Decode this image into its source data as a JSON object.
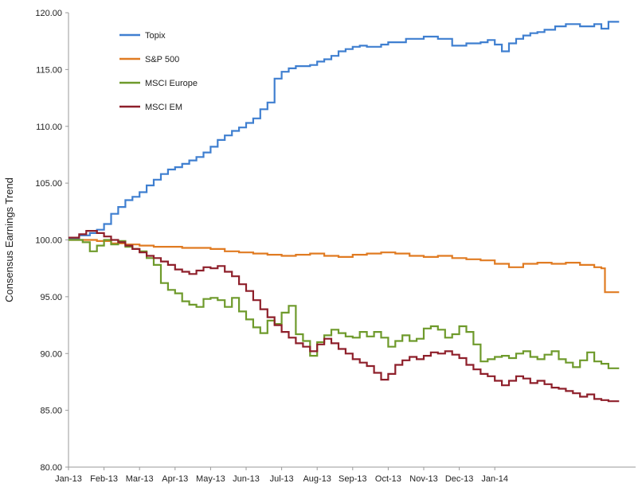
{
  "chart_data": {
    "type": "line",
    "title": "",
    "xlabel": "",
    "ylabel": "Consensus Earnings Trend",
    "ylim": [
      80,
      120
    ],
    "yticks": [
      "80.00",
      "85.00",
      "90.00",
      "95.00",
      "100.00",
      "105.00",
      "110.00",
      "115.00",
      "120.00"
    ],
    "xticks": [
      "Jan-13",
      "Feb-13",
      "Mar-13",
      "Apr-13",
      "May-13",
      "Jun-13",
      "Jul-13",
      "Aug-13",
      "Sep-13",
      "Oct-13",
      "Nov-13",
      "Dec-13",
      "Jan-14"
    ],
    "xlim": [
      0,
      15.5
    ],
    "grid": false,
    "legend": "top-left",
    "step": true,
    "series": [
      {
        "name": "Topix",
        "color": "#3f7fd0",
        "x": [
          0,
          0.3,
          0.6,
          0.8,
          1.0,
          1.2,
          1.4,
          1.6,
          1.8,
          2.0,
          2.2,
          2.4,
          2.6,
          2.8,
          3.0,
          3.2,
          3.4,
          3.6,
          3.8,
          4.0,
          4.2,
          4.4,
          4.6,
          4.8,
          5.0,
          5.2,
          5.4,
          5.6,
          5.8,
          6.0,
          6.2,
          6.4,
          6.8,
          7.0,
          7.2,
          7.4,
          7.6,
          7.8,
          8.0,
          8.2,
          8.4,
          8.6,
          8.8,
          9.0,
          9.5,
          10.0,
          10.4,
          10.8,
          11.2,
          11.6,
          11.8,
          12.0,
          12.2,
          12.4,
          12.6,
          12.8,
          13.0,
          13.2,
          13.4,
          13.7,
          14.0,
          14.4,
          14.8,
          15.0,
          15.2,
          15.5
        ],
        "y": [
          100.1,
          100.4,
          100.6,
          100.9,
          101.4,
          102.3,
          102.9,
          103.5,
          103.8,
          104.2,
          104.8,
          105.3,
          105.8,
          106.2,
          106.4,
          106.7,
          107.0,
          107.3,
          107.7,
          108.2,
          108.8,
          109.2,
          109.6,
          109.9,
          110.3,
          110.7,
          111.5,
          112.1,
          114.2,
          114.8,
          115.1,
          115.3,
          115.4,
          115.7,
          115.9,
          116.2,
          116.6,
          116.8,
          117.0,
          117.1,
          117.0,
          117.0,
          117.2,
          117.4,
          117.7,
          117.9,
          117.7,
          117.1,
          117.3,
          117.4,
          117.6,
          117.2,
          116.6,
          117.3,
          117.7,
          118.0,
          118.2,
          118.3,
          118.5,
          118.8,
          119.0,
          118.8,
          119.0,
          118.6,
          119.2,
          119.2
        ]
      },
      {
        "name": "S&P 500",
        "color": "#e07b22",
        "x": [
          0,
          0.4,
          0.8,
          1.2,
          1.6,
          2.0,
          2.4,
          2.8,
          3.2,
          3.6,
          4.0,
          4.4,
          4.8,
          5.2,
          5.6,
          6.0,
          6.4,
          6.8,
          7.2,
          7.6,
          8.0,
          8.4,
          8.8,
          9.2,
          9.6,
          10.0,
          10.4,
          10.8,
          11.2,
          11.6,
          12.0,
          12.4,
          12.8,
          13.2,
          13.6,
          14.0,
          14.4,
          14.8,
          15.0,
          15.1,
          15.5
        ],
        "y": [
          100.0,
          100.0,
          99.9,
          99.7,
          99.6,
          99.5,
          99.4,
          99.4,
          99.3,
          99.3,
          99.2,
          99.0,
          98.9,
          98.8,
          98.7,
          98.6,
          98.7,
          98.8,
          98.6,
          98.5,
          98.7,
          98.8,
          98.9,
          98.8,
          98.6,
          98.5,
          98.6,
          98.4,
          98.3,
          98.2,
          97.9,
          97.6,
          97.9,
          98.0,
          97.9,
          98.0,
          97.8,
          97.6,
          97.5,
          95.4,
          95.4
        ]
      },
      {
        "name": "MSCI Europe",
        "color": "#6e9a2b",
        "x": [
          0,
          0.4,
          0.6,
          0.8,
          1.0,
          1.2,
          1.4,
          1.6,
          1.8,
          2.0,
          2.2,
          2.4,
          2.6,
          2.8,
          3.0,
          3.2,
          3.4,
          3.6,
          3.8,
          4.0,
          4.2,
          4.4,
          4.6,
          4.8,
          5.0,
          5.2,
          5.4,
          5.6,
          5.8,
          6.0,
          6.2,
          6.4,
          6.6,
          6.8,
          7.0,
          7.2,
          7.4,
          7.6,
          7.8,
          8.0,
          8.2,
          8.4,
          8.6,
          8.8,
          9.0,
          9.2,
          9.4,
          9.6,
          9.8,
          10.0,
          10.2,
          10.4,
          10.6,
          10.8,
          11.0,
          11.2,
          11.4,
          11.6,
          11.8,
          12.0,
          12.2,
          12.4,
          12.6,
          12.8,
          13.0,
          13.2,
          13.4,
          13.6,
          13.8,
          14.0,
          14.2,
          14.4,
          14.6,
          14.8,
          15.0,
          15.2,
          15.5
        ],
        "y": [
          100.0,
          99.8,
          99.0,
          99.5,
          100.0,
          99.6,
          99.9,
          99.4,
          99.2,
          99.0,
          98.4,
          97.8,
          96.2,
          95.6,
          95.3,
          94.6,
          94.3,
          94.1,
          94.8,
          94.9,
          94.7,
          94.1,
          94.9,
          93.7,
          93.0,
          92.3,
          91.8,
          92.9,
          92.6,
          93.6,
          94.2,
          91.7,
          91.1,
          89.8,
          91.0,
          91.6,
          92.1,
          91.8,
          91.5,
          91.4,
          91.9,
          91.5,
          91.9,
          91.4,
          90.6,
          91.1,
          91.6,
          91.1,
          91.3,
          92.2,
          92.4,
          92.1,
          91.4,
          91.7,
          92.4,
          91.9,
          90.8,
          89.3,
          89.5,
          89.7,
          89.8,
          89.6,
          90.0,
          90.2,
          89.7,
          89.5,
          89.9,
          90.2,
          89.5,
          89.2,
          88.8,
          89.4,
          90.1,
          89.3,
          89.1,
          88.7,
          88.7
        ]
      },
      {
        "name": "MSCI EM",
        "color": "#8e1f2a",
        "x": [
          0,
          0.3,
          0.5,
          0.8,
          1.0,
          1.2,
          1.4,
          1.6,
          1.8,
          2.0,
          2.2,
          2.4,
          2.6,
          2.8,
          3.0,
          3.2,
          3.4,
          3.6,
          3.8,
          4.0,
          4.2,
          4.4,
          4.6,
          4.8,
          5.0,
          5.2,
          5.4,
          5.6,
          5.8,
          6.0,
          6.2,
          6.4,
          6.6,
          6.8,
          7.0,
          7.2,
          7.4,
          7.6,
          7.8,
          8.0,
          8.2,
          8.4,
          8.6,
          8.8,
          9.0,
          9.2,
          9.4,
          9.6,
          9.8,
          10.0,
          10.2,
          10.4,
          10.6,
          10.8,
          11.0,
          11.2,
          11.4,
          11.6,
          11.8,
          12.0,
          12.2,
          12.4,
          12.6,
          12.8,
          13.0,
          13.2,
          13.4,
          13.6,
          13.8,
          14.0,
          14.2,
          14.4,
          14.6,
          14.8,
          15.0,
          15.2,
          15.5
        ],
        "y": [
          100.2,
          100.5,
          100.8,
          100.6,
          100.3,
          100.0,
          99.8,
          99.5,
          99.2,
          98.9,
          98.6,
          98.4,
          98.1,
          97.8,
          97.4,
          97.2,
          97.0,
          97.3,
          97.6,
          97.5,
          97.7,
          97.2,
          96.8,
          96.1,
          95.5,
          94.7,
          93.9,
          93.2,
          92.5,
          91.9,
          91.4,
          90.9,
          90.6,
          90.2,
          90.8,
          91.3,
          90.9,
          90.4,
          90.0,
          89.5,
          89.2,
          88.9,
          88.3,
          87.7,
          88.2,
          89.0,
          89.4,
          89.7,
          89.5,
          89.8,
          90.1,
          90.0,
          90.2,
          89.9,
          89.6,
          89.0,
          88.6,
          88.2,
          88.0,
          87.6,
          87.2,
          87.6,
          88.0,
          87.8,
          87.4,
          87.6,
          87.3,
          87.0,
          86.9,
          86.7,
          86.5,
          86.2,
          86.4,
          86.0,
          85.9,
          85.8,
          85.8
        ]
      }
    ]
  }
}
